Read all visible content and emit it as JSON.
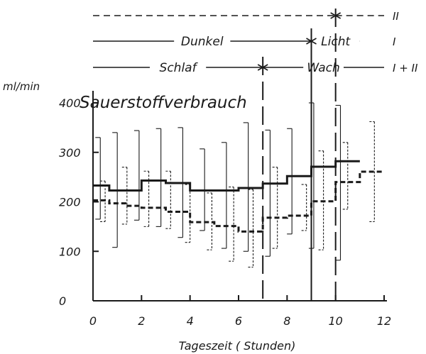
{
  "chart_data": {
    "type": "line",
    "title": "Sauerstoffverbrauch",
    "xlabel": "Tageszeit ( Stunden)",
    "ylabel": "ml/min",
    "xlim": [
      0,
      12
    ],
    "ylim": [
      0,
      430
    ],
    "x_ticks": [
      0,
      2,
      4,
      6,
      8,
      10,
      12
    ],
    "y_ticks": [
      0,
      100,
      200,
      300,
      400
    ],
    "grid": false,
    "conditions": [
      {
        "row": "II",
        "segments": [
          {
            "label": "",
            "from": 0,
            "to": 10,
            "style": "dashed"
          },
          {
            "label": "",
            "from": 10,
            "to": 12,
            "style": "dashed"
          }
        ]
      },
      {
        "row": "I",
        "segments": [
          {
            "label": "Dunkel",
            "from": 0,
            "to": 9
          },
          {
            "label": "Licht",
            "from": 9,
            "to": 11
          }
        ]
      },
      {
        "row": "I + II",
        "segments": [
          {
            "label": "Schlaf",
            "from": 0,
            "to": 7
          },
          {
            "label": "Wach",
            "from": 7,
            "to": 12
          }
        ]
      }
    ],
    "markers": [
      {
        "x": 7,
        "style": "long-dash"
      },
      {
        "x": 9,
        "style": "solid"
      },
      {
        "x": 10,
        "style": "long-dash"
      }
    ],
    "series": [
      {
        "name": "I",
        "style": "solid",
        "steps": [
          {
            "from": 0,
            "to": 0.67,
            "y": 233
          },
          {
            "from": 0.67,
            "to": 1.33,
            "y": 223
          },
          {
            "from": 1.33,
            "to": 2,
            "y": 223
          },
          {
            "from": 2,
            "to": 3,
            "y": 243
          },
          {
            "from": 3,
            "to": 4,
            "y": 238
          },
          {
            "from": 4,
            "to": 5,
            "y": 223
          },
          {
            "from": 5,
            "to": 6,
            "y": 223
          },
          {
            "from": 6,
            "to": 7,
            "y": 228
          },
          {
            "from": 7,
            "to": 8,
            "y": 237
          },
          {
            "from": 8,
            "to": 9,
            "y": 252
          },
          {
            "from": 9,
            "to": 10,
            "y": 271
          },
          {
            "from": 10,
            "to": 11,
            "y": 282
          }
        ],
        "ranges": [
          {
            "x": 0.3,
            "low": 165,
            "high": 330
          },
          {
            "x": 1.0,
            "low": 108,
            "high": 340
          },
          {
            "x": 1.9,
            "low": 163,
            "high": 344
          },
          {
            "x": 2.8,
            "low": 150,
            "high": 348
          },
          {
            "x": 3.7,
            "low": 128,
            "high": 350
          },
          {
            "x": 4.6,
            "low": 142,
            "high": 307
          },
          {
            "x": 5.5,
            "low": 106,
            "high": 320
          },
          {
            "x": 6.4,
            "low": 100,
            "high": 360
          },
          {
            "x": 7.3,
            "low": 90,
            "high": 345
          },
          {
            "x": 8.2,
            "low": 135,
            "high": 348
          },
          {
            "x": 9.1,
            "low": 106,
            "high": 400
          },
          {
            "x": 10.2,
            "low": 82,
            "high": 395
          }
        ]
      },
      {
        "name": "II",
        "style": "dashed",
        "steps": [
          {
            "from": 0,
            "to": 0.67,
            "y": 203
          },
          {
            "from": 0.67,
            "to": 1.33,
            "y": 197
          },
          {
            "from": 1.33,
            "to": 2,
            "y": 192
          },
          {
            "from": 2,
            "to": 3,
            "y": 188
          },
          {
            "from": 3,
            "to": 4,
            "y": 180
          },
          {
            "from": 4,
            "to": 5,
            "y": 159
          },
          {
            "from": 5,
            "to": 6,
            "y": 151
          },
          {
            "from": 6,
            "to": 7,
            "y": 140
          },
          {
            "from": 7,
            "to": 8,
            "y": 168
          },
          {
            "from": 8,
            "to": 9,
            "y": 172
          },
          {
            "from": 9,
            "to": 10,
            "y": 201
          },
          {
            "from": 10,
            "to": 11,
            "y": 240
          },
          {
            "from": 11,
            "to": 12,
            "y": 261
          }
        ],
        "ranges": [
          {
            "x": 0.5,
            "low": 160,
            "high": 242
          },
          {
            "x": 1.4,
            "low": 155,
            "high": 270
          },
          {
            "x": 2.3,
            "low": 150,
            "high": 262
          },
          {
            "x": 3.2,
            "low": 146,
            "high": 262
          },
          {
            "x": 4.0,
            "low": 118,
            "high": 235
          },
          {
            "x": 4.9,
            "low": 103,
            "high": 218
          },
          {
            "x": 5.8,
            "low": 80,
            "high": 230
          },
          {
            "x": 6.6,
            "low": 68,
            "high": 225
          },
          {
            "x": 7.6,
            "low": 106,
            "high": 270
          },
          {
            "x": 8.8,
            "low": 142,
            "high": 235
          },
          {
            "x": 9.5,
            "low": 103,
            "high": 303
          },
          {
            "x": 10.5,
            "low": 185,
            "high": 320
          },
          {
            "x": 11.6,
            "low": 160,
            "high": 362
          }
        ]
      }
    ]
  }
}
